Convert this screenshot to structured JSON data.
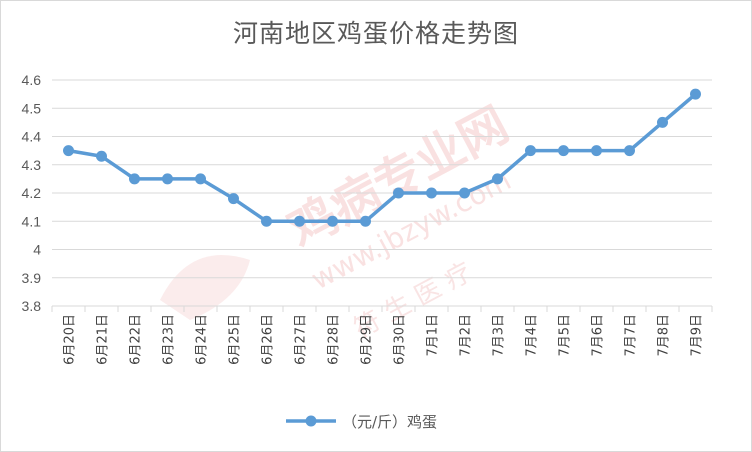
{
  "title": "河南地区鸡蛋价格走势图",
  "watermark": {
    "line1": "鸡病专业网",
    "line2": "www.jbzyw.com",
    "line3": "符 生 医 疗",
    "color": "#f4c9c9"
  },
  "legend": {
    "label": "（元/斤）鸡蛋"
  },
  "colors": {
    "series": "#5b9bd5",
    "grid": "#d9d9d9",
    "text": "#595959"
  },
  "chart_data": {
    "type": "line",
    "title": "河南地区鸡蛋价格走势图",
    "xlabel": "",
    "ylabel": "",
    "categories": [
      "6月20日",
      "6月21日",
      "6月22日",
      "6月23日",
      "6月24日",
      "6月25日",
      "6月26日",
      "6月27日",
      "6月28日",
      "6月29日",
      "6月30日",
      "7月1日",
      "7月2日",
      "7月3日",
      "7月4日",
      "7月5日",
      "7月6日",
      "7月7日",
      "7月8日",
      "7月9日"
    ],
    "series": [
      {
        "name": "（元/斤）鸡蛋",
        "values": [
          4.35,
          4.33,
          4.25,
          4.25,
          4.25,
          4.18,
          4.1,
          4.1,
          4.1,
          4.1,
          4.2,
          4.2,
          4.2,
          4.25,
          4.35,
          4.35,
          4.35,
          4.35,
          4.45,
          4.55
        ]
      }
    ],
    "ylim": [
      3.8,
      4.6
    ],
    "yticks": [
      "3.8",
      "3.9",
      "4",
      "4.1",
      "4.2",
      "4.3",
      "4.4",
      "4.5",
      "4.6"
    ],
    "grid": true,
    "legend_position": "bottom"
  }
}
